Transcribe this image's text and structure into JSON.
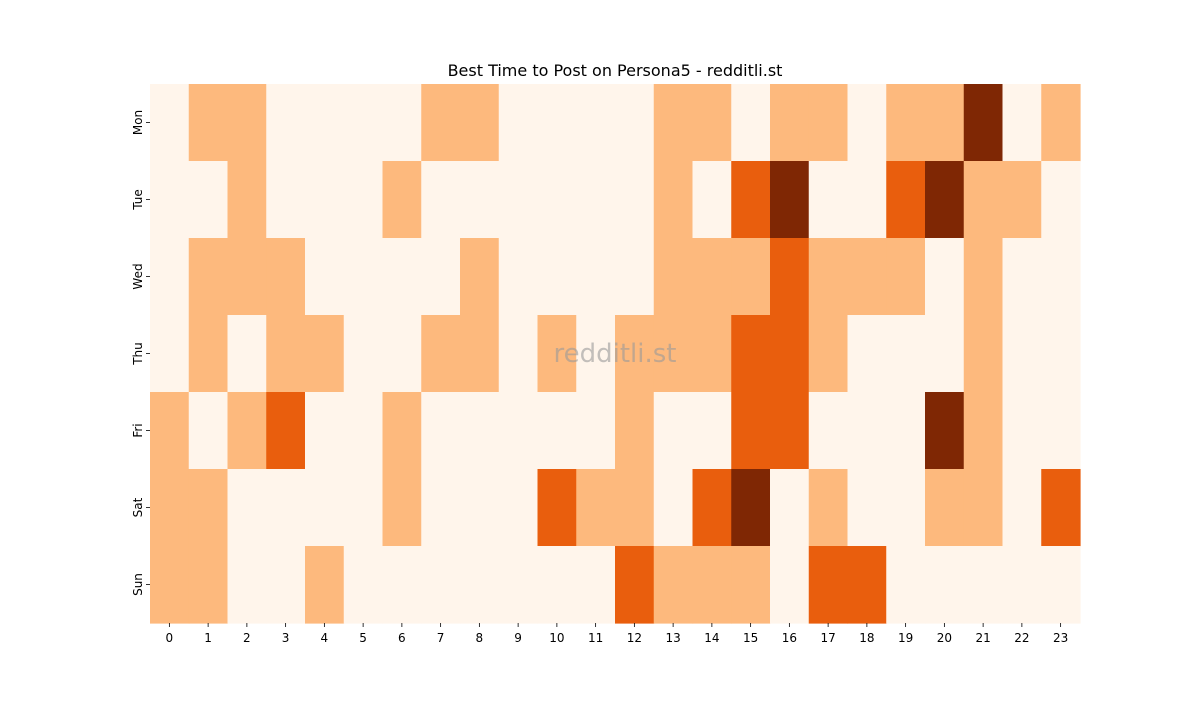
{
  "chart_data": {
    "type": "heatmap",
    "title": "Best Time to Post on Persona5 - redditli.st",
    "xlabel": "",
    "ylabel": "",
    "x_categories": [
      "0",
      "1",
      "2",
      "3",
      "4",
      "5",
      "6",
      "7",
      "8",
      "9",
      "10",
      "11",
      "12",
      "13",
      "14",
      "15",
      "16",
      "17",
      "18",
      "19",
      "20",
      "21",
      "22",
      "23"
    ],
    "y_categories": [
      "Mon",
      "Tue",
      "Wed",
      "Thu",
      "Fri",
      "Sat",
      "Sun"
    ],
    "values": [
      [
        0,
        1,
        1,
        0,
        0,
        0,
        0,
        1,
        1,
        0,
        0,
        0,
        0,
        1,
        1,
        0,
        1,
        1,
        0,
        1,
        1,
        3,
        0,
        1
      ],
      [
        0,
        0,
        1,
        0,
        0,
        0,
        1,
        0,
        0,
        0,
        0,
        0,
        0,
        1,
        0,
        2,
        3,
        0,
        0,
        2,
        3,
        1,
        1,
        0
      ],
      [
        0,
        1,
        1,
        1,
        0,
        0,
        0,
        0,
        1,
        0,
        0,
        0,
        0,
        1,
        1,
        1,
        2,
        1,
        1,
        1,
        0,
        1,
        0,
        0
      ],
      [
        0,
        1,
        0,
        1,
        1,
        0,
        0,
        1,
        1,
        0,
        1,
        0,
        1,
        1,
        1,
        2,
        2,
        1,
        0,
        0,
        0,
        1,
        0,
        0
      ],
      [
        1,
        0,
        1,
        2,
        0,
        0,
        1,
        0,
        0,
        0,
        0,
        0,
        1,
        0,
        0,
        2,
        2,
        0,
        0,
        0,
        3,
        1,
        0,
        0
      ],
      [
        1,
        1,
        0,
        0,
        0,
        0,
        1,
        0,
        0,
        0,
        2,
        1,
        1,
        0,
        2,
        3,
        0,
        1,
        0,
        0,
        1,
        1,
        0,
        2
      ],
      [
        1,
        1,
        0,
        0,
        1,
        0,
        0,
        0,
        0,
        0,
        0,
        0,
        2,
        1,
        1,
        1,
        0,
        2,
        2,
        0,
        0,
        0,
        0,
        0
      ]
    ],
    "value_range": [
      0,
      3
    ],
    "colormap": [
      "#fff5eb",
      "#fdb97d",
      "#e95e0d",
      "#7f2704"
    ],
    "grid": false,
    "legend": "none",
    "watermark": "redditli.st"
  }
}
